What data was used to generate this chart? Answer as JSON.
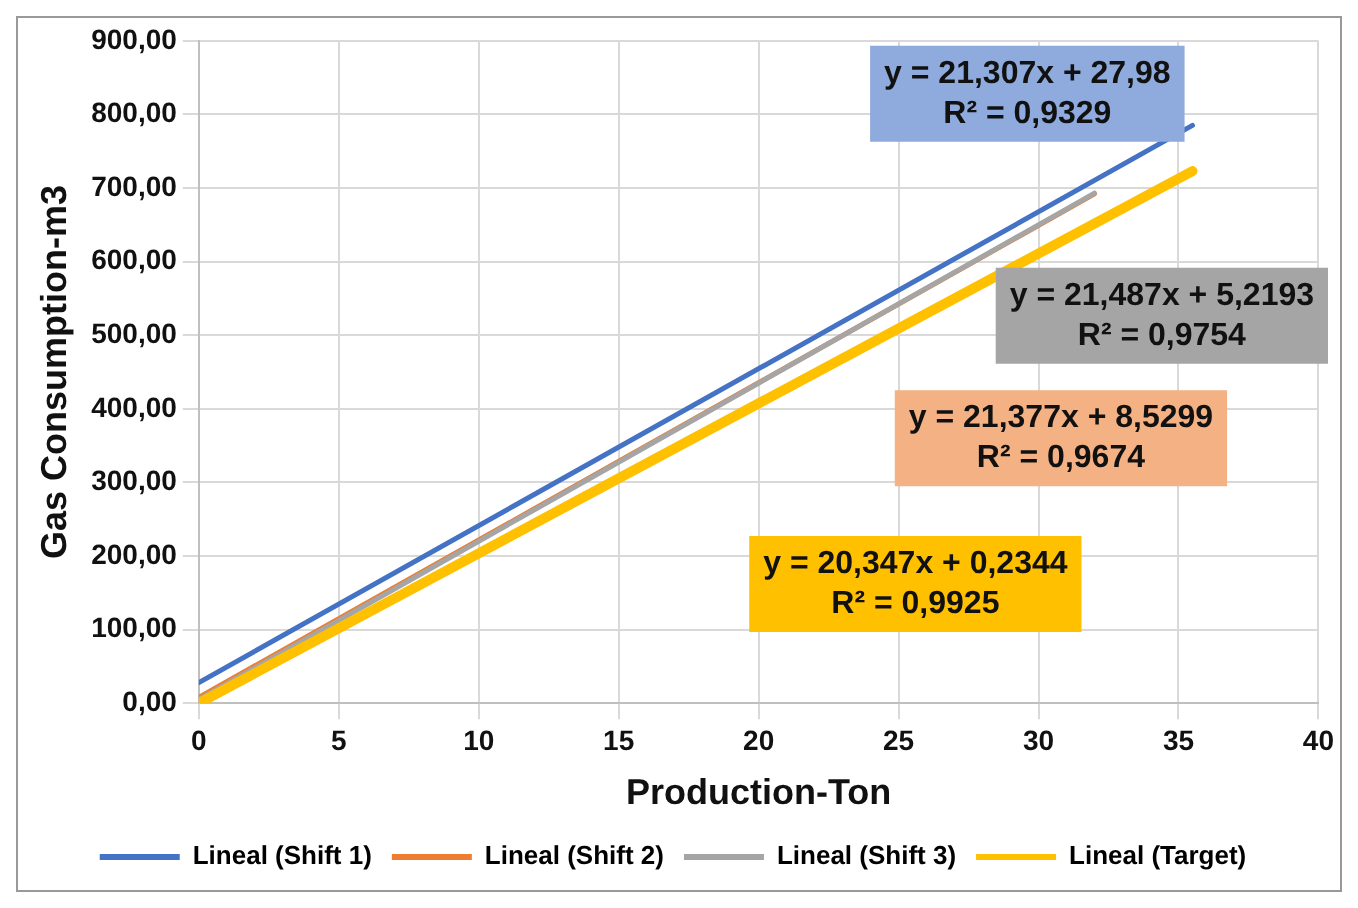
{
  "chart_data": {
    "type": "line",
    "xlabel": "Production-Ton",
    "ylabel": "Gas Consumption-m3",
    "xlim": [
      0,
      40
    ],
    "xticks": [
      0,
      5,
      10,
      15,
      20,
      25,
      30,
      35,
      40
    ],
    "ylim": [
      0,
      900
    ],
    "yticks": [
      {
        "value": 0,
        "label": "0,00"
      },
      {
        "value": 100,
        "label": "100,00"
      },
      {
        "value": 200,
        "label": "200,00"
      },
      {
        "value": 300,
        "label": "300,00"
      },
      {
        "value": 400,
        "label": "400,00"
      },
      {
        "value": 500,
        "label": "500,00"
      },
      {
        "value": 600,
        "label": "600,00"
      },
      {
        "value": 700,
        "label": "700,00"
      },
      {
        "value": 800,
        "label": "800,00"
      },
      {
        "value": 900,
        "label": "900,00"
      }
    ],
    "grid": true,
    "legend": "bottom",
    "marker": "none",
    "line_style": "solid",
    "series": [
      {
        "name": "Lineal (Shift 1)",
        "color": "#4472c4",
        "x": [
          0,
          35.5
        ],
        "values": [
          28,
          785
        ]
      },
      {
        "name": "Lineal (Shift 2)",
        "color": "#ed7d31",
        "x": [
          0,
          32
        ],
        "values": [
          8,
          692
        ]
      },
      {
        "name": "Lineal (Shift 3)",
        "color": "#a5a5a5",
        "x": [
          0,
          32
        ],
        "values": [
          5,
          693
        ]
      },
      {
        "name": "Lineal (Target)",
        "color": "#ffc000",
        "x": [
          0,
          35.5
        ],
        "values": [
          0,
          723
        ]
      }
    ],
    "annotations": [
      "y = 21,307x + 27,98\nR² = 0,9329",
      "y = 21,487x + 5,2193\nR² = 0,9754",
      "y = 21,377x + 8,5299\nR² = 0,9674",
      "y = 20,347x + 0,2344\nR² = 0,9925"
    ]
  }
}
